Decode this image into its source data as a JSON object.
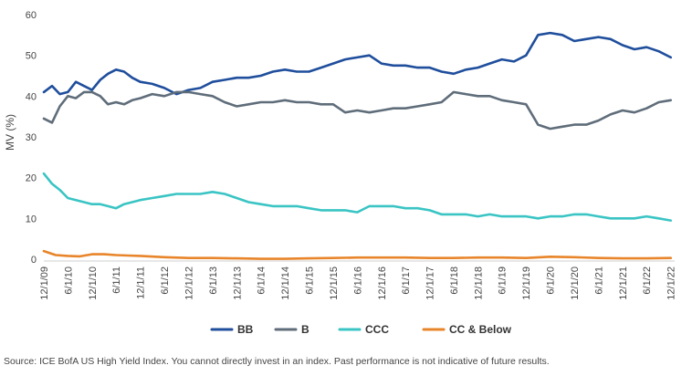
{
  "source_note": "Source: ICE BofA US High Yield Index. You cannot directly invest in an index. Past performance is not indicative of future results.",
  "chart_data": {
    "type": "line",
    "title": "",
    "xlabel": "",
    "ylabel": "MV (%)",
    "ylim": [
      0,
      60
    ],
    "yticks": [
      0,
      10,
      20,
      30,
      40,
      50,
      60
    ],
    "xlim": [
      "12/1/09",
      "12/31/22"
    ],
    "xticks": [
      "12/1/09",
      "6/1/10",
      "12/1/10",
      "6/1/11",
      "12/1/11",
      "6/1/12",
      "12/1/12",
      "6/1/13",
      "12/1/13",
      "6/1/14",
      "12/1/14",
      "6/1/15",
      "12/1/15",
      "6/1/16",
      "12/1/16",
      "6/1/17",
      "12/1/17",
      "6/1/18",
      "12/1/18",
      "6/1/19",
      "12/1/19",
      "6/1/20",
      "12/1/20",
      "6/1/21",
      "12/1/21",
      "6/1/22",
      "12/1/22"
    ],
    "grid": false,
    "legend_position": "bottom",
    "series": [
      {
        "name": "BB",
        "color": "#1f4e9c",
        "x": [
          "12/1/09",
          "2/1/10",
          "4/1/10",
          "6/1/10",
          "8/1/10",
          "10/1/10",
          "12/1/10",
          "2/1/11",
          "4/1/11",
          "6/1/11",
          "8/1/11",
          "10/1/11",
          "12/1/11",
          "3/1/12",
          "6/1/12",
          "9/1/12",
          "12/1/12",
          "3/1/13",
          "6/1/13",
          "9/1/13",
          "12/1/13",
          "3/1/14",
          "6/1/14",
          "9/1/14",
          "12/1/14",
          "3/1/15",
          "6/1/15",
          "9/1/15",
          "12/1/15",
          "3/1/16",
          "6/1/16",
          "9/1/16",
          "12/1/16",
          "3/1/17",
          "6/1/17",
          "9/1/17",
          "12/1/17",
          "3/1/18",
          "6/1/18",
          "9/1/18",
          "12/1/18",
          "3/1/19",
          "6/1/19",
          "9/1/19",
          "12/1/19",
          "3/1/20",
          "6/1/20",
          "9/1/20",
          "12/1/20",
          "3/1/21",
          "6/1/21",
          "9/1/21",
          "12/1/21",
          "3/1/22",
          "6/1/22",
          "9/1/22",
          "12/1/22"
        ],
        "values": [
          41,
          42.5,
          40.5,
          41,
          43.5,
          42.5,
          41.5,
          44,
          45.5,
          46.5,
          46,
          44.5,
          43.5,
          43,
          42,
          40.5,
          41.5,
          42,
          43.5,
          44,
          44.5,
          44.5,
          45,
          46,
          46.5,
          46,
          46,
          47,
          48,
          49,
          49.5,
          50,
          48,
          47.5,
          47.5,
          47,
          47,
          46,
          45.5,
          46.5,
          47,
          48,
          49,
          48.5,
          50,
          55,
          55.5,
          55,
          53.5,
          54,
          54.5,
          54,
          52.5,
          51.5,
          52,
          51,
          49.5
        ]
      },
      {
        "name": "B",
        "color": "#5f6d7a",
        "x": [
          "12/1/09",
          "2/1/10",
          "4/1/10",
          "6/1/10",
          "8/1/10",
          "10/1/10",
          "12/1/10",
          "2/1/11",
          "4/1/11",
          "6/1/11",
          "8/1/11",
          "10/1/11",
          "12/1/11",
          "3/1/12",
          "6/1/12",
          "9/1/12",
          "12/1/12",
          "3/1/13",
          "6/1/13",
          "9/1/13",
          "12/1/13",
          "3/1/14",
          "6/1/14",
          "9/1/14",
          "12/1/14",
          "3/1/15",
          "6/1/15",
          "9/1/15",
          "12/1/15",
          "3/1/16",
          "6/1/16",
          "9/1/16",
          "12/1/16",
          "3/1/17",
          "6/1/17",
          "9/1/17",
          "12/1/17",
          "3/1/18",
          "6/1/18",
          "9/1/18",
          "12/1/18",
          "3/1/19",
          "6/1/19",
          "9/1/19",
          "12/1/19",
          "3/1/20",
          "6/1/20",
          "9/1/20",
          "12/1/20",
          "3/1/21",
          "6/1/21",
          "9/1/21",
          "12/1/21",
          "3/1/22",
          "6/1/22",
          "9/1/22",
          "12/1/22"
        ],
        "values": [
          34.5,
          33.5,
          37.5,
          40,
          39.5,
          41,
          41,
          40,
          38,
          38.5,
          38,
          39,
          39.5,
          40.5,
          40,
          41,
          41,
          40.5,
          40,
          38.5,
          37.5,
          38,
          38.5,
          38.5,
          39,
          38.5,
          38.5,
          38,
          38,
          36,
          36.5,
          36,
          36.5,
          37,
          37,
          37.5,
          38,
          38.5,
          41,
          40.5,
          40,
          40,
          39,
          38.5,
          38,
          33,
          32,
          32.5,
          33,
          33,
          34,
          35.5,
          36.5,
          36,
          37,
          38.5,
          39
        ]
      },
      {
        "name": "CCC",
        "color": "#3ac4c4",
        "x": [
          "12/1/09",
          "2/1/10",
          "4/1/10",
          "6/1/10",
          "8/1/10",
          "10/1/10",
          "12/1/10",
          "2/1/11",
          "4/1/11",
          "6/1/11",
          "8/1/11",
          "10/1/11",
          "12/1/11",
          "3/1/12",
          "6/1/12",
          "9/1/12",
          "12/1/12",
          "3/1/13",
          "6/1/13",
          "9/1/13",
          "12/1/13",
          "3/1/14",
          "6/1/14",
          "9/1/14",
          "12/1/14",
          "3/1/15",
          "6/1/15",
          "9/1/15",
          "12/1/15",
          "3/1/16",
          "6/1/16",
          "9/1/16",
          "12/1/16",
          "3/1/17",
          "6/1/17",
          "9/1/17",
          "12/1/17",
          "3/1/18",
          "6/1/18",
          "9/1/18",
          "12/1/18",
          "3/1/19",
          "6/1/19",
          "9/1/19",
          "12/1/19",
          "3/1/20",
          "6/1/20",
          "9/1/20",
          "12/1/20",
          "3/1/21",
          "6/1/21",
          "9/1/21",
          "12/1/21",
          "3/1/22",
          "6/1/22",
          "9/1/22",
          "12/1/22"
        ],
        "values": [
          21,
          18.5,
          17,
          15,
          14.5,
          14,
          13.5,
          13.5,
          13,
          12.5,
          13.5,
          14,
          14.5,
          15,
          15.5,
          16,
          16,
          16,
          16.5,
          16,
          15,
          14,
          13.5,
          13,
          13,
          13,
          12.5,
          12,
          12,
          12,
          11.5,
          13,
          13,
          13,
          12.5,
          12.5,
          12,
          11,
          11,
          11,
          10.5,
          11,
          10.5,
          10.5,
          10.5,
          10,
          10.5,
          10.5,
          11,
          11,
          10.5,
          10,
          10,
          10,
          10.5,
          10,
          9.5
        ]
      },
      {
        "name": "CC & Below",
        "color": "#e8852a",
        "x": [
          "12/1/09",
          "3/1/10",
          "6/1/10",
          "9/1/10",
          "12/1/10",
          "3/1/11",
          "6/1/11",
          "9/1/11",
          "12/1/11",
          "6/1/12",
          "12/1/12",
          "6/1/13",
          "12/1/13",
          "6/1/14",
          "12/1/14",
          "6/1/15",
          "12/1/15",
          "6/1/16",
          "12/1/16",
          "6/1/17",
          "12/1/17",
          "6/1/18",
          "12/1/18",
          "6/1/19",
          "12/1/19",
          "6/1/20",
          "12/1/20",
          "6/1/21",
          "12/1/21",
          "6/1/22",
          "12/1/22"
        ],
        "values": [
          2,
          1,
          0.8,
          0.7,
          1.2,
          1.2,
          1,
          0.9,
          0.8,
          0.5,
          0.3,
          0.3,
          0.2,
          0.1,
          0.1,
          0.2,
          0.3,
          0.4,
          0.4,
          0.4,
          0.3,
          0.3,
          0.4,
          0.4,
          0.3,
          0.6,
          0.5,
          0.3,
          0.2,
          0.2,
          0.3
        ]
      }
    ]
  }
}
